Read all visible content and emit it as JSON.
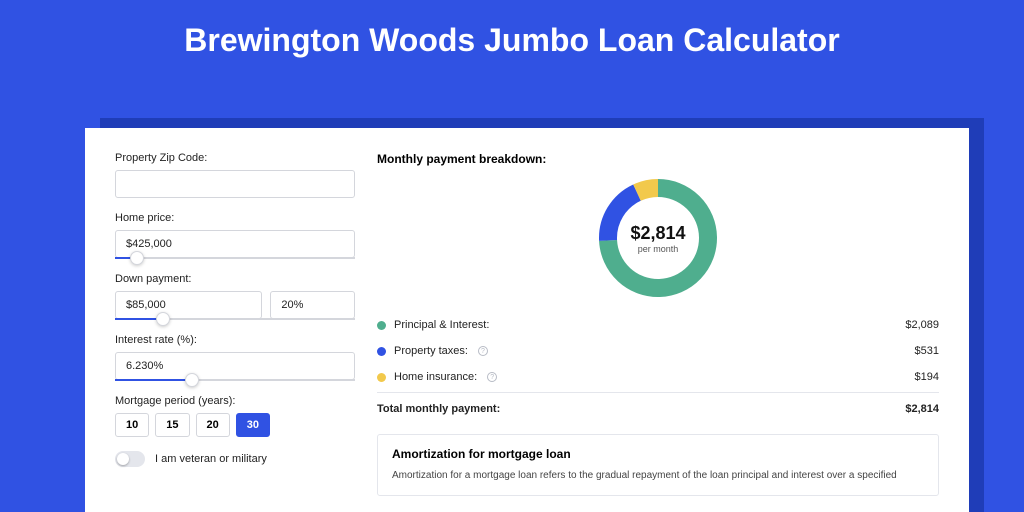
{
  "title": "Brewington Woods Jumbo Loan Calculator",
  "colors": {
    "page_bg": "#3052e3",
    "card_bg": "#ffffff",
    "shadow": "#1f3db8",
    "accent": "#3052e3",
    "border": "#d4d6dc",
    "text": "#222222"
  },
  "form": {
    "zip": {
      "label": "Property Zip Code:",
      "value": ""
    },
    "home_price": {
      "label": "Home price:",
      "value": "$425,000",
      "slider_pct": 9
    },
    "down_payment": {
      "label": "Down payment:",
      "value": "$85,000",
      "pct": "20%",
      "slider_pct": 20
    },
    "interest_rate": {
      "label": "Interest rate (%):",
      "value": "6.230%",
      "slider_pct": 32
    },
    "mortgage_period": {
      "label": "Mortgage period (years):",
      "options": [
        "10",
        "15",
        "20",
        "30"
      ],
      "active": "30"
    },
    "veteran": {
      "label": "I am veteran or military",
      "checked": false
    }
  },
  "breakdown": {
    "title": "Monthly payment breakdown:",
    "center_amount": "$2,814",
    "center_sub": "per month",
    "donut": {
      "series": [
        {
          "label": "Principal & Interest:",
          "value": "$2,089",
          "num": 2089,
          "color": "#4fae8e"
        },
        {
          "label": "Property taxes:",
          "value": "$531",
          "num": 531,
          "color": "#3052e3",
          "info": true
        },
        {
          "label": "Home insurance:",
          "value": "$194",
          "num": 194,
          "color": "#f2c94c",
          "info": true
        }
      ],
      "stroke_width": 18,
      "bg": "#ffffff"
    },
    "total": {
      "label": "Total monthly payment:",
      "value": "$2,814"
    }
  },
  "amortization": {
    "title": "Amortization for mortgage loan",
    "text": "Amortization for a mortgage loan refers to the gradual repayment of the loan principal and interest over a specified"
  }
}
